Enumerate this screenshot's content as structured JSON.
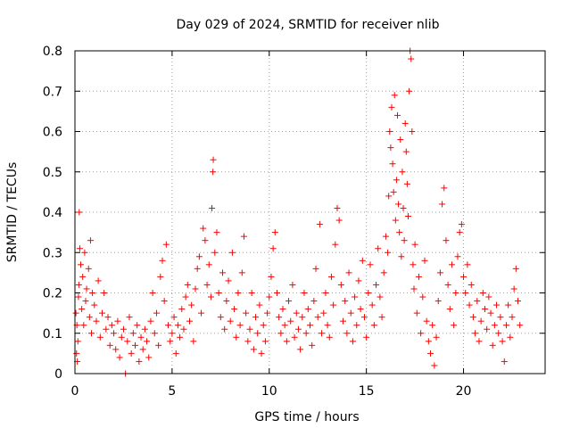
{
  "chart_data": {
    "type": "scatter",
    "title": "Day 029 of 2024, SRMTID for receiver nlib",
    "xlabel": "GPS time / hours",
    "ylabel": "SRMTID / TECUs",
    "xlim": [
      0,
      24.2
    ],
    "ylim": [
      0,
      0.8
    ],
    "xticks": [
      0,
      5,
      10,
      15,
      20
    ],
    "yticks": [
      0,
      0.1,
      0.2,
      0.3,
      0.4,
      0.5,
      0.6,
      0.7,
      0.8
    ],
    "xtick_labels": [
      "0",
      "5",
      "10",
      "15",
      "20"
    ],
    "ytick_labels": [
      "0",
      "0.1",
      "0.2",
      "0.3",
      "0.4",
      "0.5",
      "0.6",
      "0.7",
      "0.8"
    ],
    "grid": true,
    "marker": "+",
    "color": "#ff0000",
    "series": [
      {
        "name": "SRMTID",
        "points": [
          [
            0.05,
            0.15
          ],
          [
            0.08,
            0.05
          ],
          [
            0.1,
            0.12
          ],
          [
            0.12,
            0.03
          ],
          [
            0.15,
            0.08
          ],
          [
            0.18,
            0.19
          ],
          [
            0.2,
            0.22
          ],
          [
            0.22,
            0.4
          ],
          [
            0.25,
            0.31
          ],
          [
            0.3,
            0.27
          ],
          [
            0.35,
            0.16
          ],
          [
            0.4,
            0.24
          ],
          [
            0.45,
            0.12
          ],
          [
            0.5,
            0.3
          ],
          [
            0.55,
            0.18
          ],
          [
            0.6,
            0.21
          ],
          [
            0.7,
            0.26
          ],
          [
            0.75,
            0.14
          ],
          [
            0.8,
            0.33
          ],
          [
            0.85,
            0.1
          ],
          [
            0.9,
            0.2
          ],
          [
            1.0,
            0.17
          ],
          [
            1.1,
            0.13
          ],
          [
            1.2,
            0.23
          ],
          [
            1.3,
            0.09
          ],
          [
            1.4,
            0.15
          ],
          [
            1.5,
            0.2
          ],
          [
            1.6,
            0.11
          ],
          [
            1.7,
            0.14
          ],
          [
            1.8,
            0.07
          ],
          [
            1.9,
            0.12
          ],
          [
            2.0,
            0.1
          ],
          [
            2.1,
            0.06
          ],
          [
            2.2,
            0.13
          ],
          [
            2.3,
            0.04
          ],
          [
            2.4,
            0.09
          ],
          [
            2.5,
            0.11
          ],
          [
            2.6,
            0.0
          ],
          [
            2.7,
            0.08
          ],
          [
            2.8,
            0.14
          ],
          [
            2.9,
            0.05
          ],
          [
            3.0,
            0.1
          ],
          [
            3.1,
            0.07
          ],
          [
            3.2,
            0.12
          ],
          [
            3.3,
            0.03
          ],
          [
            3.4,
            0.09
          ],
          [
            3.5,
            0.06
          ],
          [
            3.6,
            0.11
          ],
          [
            3.7,
            0.08
          ],
          [
            3.8,
            0.04
          ],
          [
            3.9,
            0.13
          ],
          [
            4.0,
            0.2
          ],
          [
            4.1,
            0.1
          ],
          [
            4.2,
            0.15
          ],
          [
            4.3,
            0.07
          ],
          [
            4.4,
            0.24
          ],
          [
            4.5,
            0.28
          ],
          [
            4.6,
            0.18
          ],
          [
            4.7,
            0.32
          ],
          [
            4.8,
            0.12
          ],
          [
            4.9,
            0.08
          ],
          [
            5.0,
            0.1
          ],
          [
            5.1,
            0.14
          ],
          [
            5.2,
            0.05
          ],
          [
            5.3,
            0.12
          ],
          [
            5.4,
            0.09
          ],
          [
            5.5,
            0.16
          ],
          [
            5.6,
            0.11
          ],
          [
            5.7,
            0.19
          ],
          [
            5.8,
            0.22
          ],
          [
            5.9,
            0.13
          ],
          [
            6.0,
            0.17
          ],
          [
            6.1,
            0.08
          ],
          [
            6.2,
            0.21
          ],
          [
            6.3,
            0.26
          ],
          [
            6.4,
            0.29
          ],
          [
            6.5,
            0.15
          ],
          [
            6.6,
            0.36
          ],
          [
            6.7,
            0.33
          ],
          [
            6.8,
            0.22
          ],
          [
            6.9,
            0.27
          ],
          [
            7.0,
            0.19
          ],
          [
            7.05,
            0.41
          ],
          [
            7.1,
            0.5
          ],
          [
            7.12,
            0.53
          ],
          [
            7.2,
            0.3
          ],
          [
            7.3,
            0.35
          ],
          [
            7.4,
            0.2
          ],
          [
            7.5,
            0.14
          ],
          [
            7.6,
            0.25
          ],
          [
            7.7,
            0.11
          ],
          [
            7.8,
            0.18
          ],
          [
            7.9,
            0.23
          ],
          [
            8.0,
            0.13
          ],
          [
            8.1,
            0.3
          ],
          [
            8.2,
            0.16
          ],
          [
            8.3,
            0.09
          ],
          [
            8.4,
            0.2
          ],
          [
            8.5,
            0.12
          ],
          [
            8.6,
            0.25
          ],
          [
            8.7,
            0.34
          ],
          [
            8.8,
            0.15
          ],
          [
            8.9,
            0.08
          ],
          [
            9.0,
            0.11
          ],
          [
            9.1,
            0.2
          ],
          [
            9.2,
            0.06
          ],
          [
            9.3,
            0.14
          ],
          [
            9.4,
            0.1
          ],
          [
            9.5,
            0.17
          ],
          [
            9.6,
            0.05
          ],
          [
            9.7,
            0.12
          ],
          [
            9.8,
            0.08
          ],
          [
            9.9,
            0.15
          ],
          [
            10.0,
            0.19
          ],
          [
            10.1,
            0.24
          ],
          [
            10.2,
            0.31
          ],
          [
            10.3,
            0.35
          ],
          [
            10.4,
            0.2
          ],
          [
            10.5,
            0.14
          ],
          [
            10.6,
            0.1
          ],
          [
            10.7,
            0.16
          ],
          [
            10.8,
            0.12
          ],
          [
            10.9,
            0.08
          ],
          [
            11.0,
            0.18
          ],
          [
            11.1,
            0.13
          ],
          [
            11.2,
            0.22
          ],
          [
            11.3,
            0.09
          ],
          [
            11.4,
            0.15
          ],
          [
            11.5,
            0.11
          ],
          [
            11.6,
            0.06
          ],
          [
            11.7,
            0.14
          ],
          [
            11.8,
            0.2
          ],
          [
            11.9,
            0.1
          ],
          [
            12.0,
            0.16
          ],
          [
            12.1,
            0.12
          ],
          [
            12.2,
            0.07
          ],
          [
            12.3,
            0.18
          ],
          [
            12.4,
            0.26
          ],
          [
            12.5,
            0.14
          ],
          [
            12.6,
            0.37
          ],
          [
            12.7,
            0.1
          ],
          [
            12.8,
            0.15
          ],
          [
            12.9,
            0.2
          ],
          [
            13.0,
            0.12
          ],
          [
            13.1,
            0.09
          ],
          [
            13.2,
            0.24
          ],
          [
            13.3,
            0.17
          ],
          [
            13.4,
            0.32
          ],
          [
            13.5,
            0.41
          ],
          [
            13.6,
            0.38
          ],
          [
            13.7,
            0.22
          ],
          [
            13.8,
            0.13
          ],
          [
            13.9,
            0.18
          ],
          [
            14.0,
            0.1
          ],
          [
            14.1,
            0.25
          ],
          [
            14.2,
            0.15
          ],
          [
            14.3,
            0.08
          ],
          [
            14.4,
            0.19
          ],
          [
            14.5,
            0.12
          ],
          [
            14.6,
            0.23
          ],
          [
            14.7,
            0.16
          ],
          [
            14.8,
            0.28
          ],
          [
            14.9,
            0.14
          ],
          [
            15.0,
            0.09
          ],
          [
            15.1,
            0.2
          ],
          [
            15.2,
            0.27
          ],
          [
            15.3,
            0.17
          ],
          [
            15.4,
            0.12
          ],
          [
            15.5,
            0.22
          ],
          [
            15.6,
            0.31
          ],
          [
            15.7,
            0.19
          ],
          [
            15.8,
            0.14
          ],
          [
            15.9,
            0.25
          ],
          [
            16.0,
            0.34
          ],
          [
            16.1,
            0.3
          ],
          [
            16.15,
            0.44
          ],
          [
            16.2,
            0.6
          ],
          [
            16.25,
            0.56
          ],
          [
            16.3,
            0.66
          ],
          [
            16.35,
            0.52
          ],
          [
            16.4,
            0.45
          ],
          [
            16.45,
            0.69
          ],
          [
            16.5,
            0.38
          ],
          [
            16.55,
            0.48
          ],
          [
            16.6,
            0.64
          ],
          [
            16.65,
            0.42
          ],
          [
            16.7,
            0.35
          ],
          [
            16.75,
            0.58
          ],
          [
            16.8,
            0.29
          ],
          [
            16.85,
            0.5
          ],
          [
            16.9,
            0.41
          ],
          [
            16.95,
            0.33
          ],
          [
            17.0,
            0.62
          ],
          [
            17.05,
            0.55
          ],
          [
            17.1,
            0.47
          ],
          [
            17.15,
            0.39
          ],
          [
            17.2,
            0.7
          ],
          [
            17.25,
            0.8
          ],
          [
            17.3,
            0.78
          ],
          [
            17.35,
            0.6
          ],
          [
            17.4,
            0.27
          ],
          [
            17.45,
            0.21
          ],
          [
            17.5,
            0.32
          ],
          [
            17.6,
            0.15
          ],
          [
            17.7,
            0.24
          ],
          [
            17.8,
            0.1
          ],
          [
            17.9,
            0.19
          ],
          [
            18.0,
            0.28
          ],
          [
            18.1,
            0.13
          ],
          [
            18.2,
            0.08
          ],
          [
            18.3,
            0.05
          ],
          [
            18.4,
            0.12
          ],
          [
            18.5,
            0.02
          ],
          [
            18.6,
            0.09
          ],
          [
            18.7,
            0.18
          ],
          [
            18.8,
            0.25
          ],
          [
            18.9,
            0.42
          ],
          [
            19.0,
            0.46
          ],
          [
            19.1,
            0.33
          ],
          [
            19.2,
            0.22
          ],
          [
            19.3,
            0.16
          ],
          [
            19.4,
            0.27
          ],
          [
            19.5,
            0.12
          ],
          [
            19.6,
            0.2
          ],
          [
            19.7,
            0.29
          ],
          [
            19.8,
            0.35
          ],
          [
            19.9,
            0.37
          ],
          [
            20.0,
            0.24
          ],
          [
            20.1,
            0.2
          ],
          [
            20.2,
            0.27
          ],
          [
            20.3,
            0.17
          ],
          [
            20.4,
            0.22
          ],
          [
            20.5,
            0.14
          ],
          [
            20.6,
            0.1
          ],
          [
            20.7,
            0.18
          ],
          [
            20.8,
            0.08
          ],
          [
            20.9,
            0.13
          ],
          [
            21.0,
            0.2
          ],
          [
            21.1,
            0.16
          ],
          [
            21.2,
            0.11
          ],
          [
            21.3,
            0.19
          ],
          [
            21.4,
            0.15
          ],
          [
            21.5,
            0.07
          ],
          [
            21.6,
            0.12
          ],
          [
            21.7,
            0.17
          ],
          [
            21.8,
            0.1
          ],
          [
            21.9,
            0.14
          ],
          [
            22.0,
            0.08
          ],
          [
            22.1,
            0.03
          ],
          [
            22.2,
            0.12
          ],
          [
            22.3,
            0.17
          ],
          [
            22.4,
            0.09
          ],
          [
            22.5,
            0.14
          ],
          [
            22.6,
            0.21
          ],
          [
            22.7,
            0.26
          ],
          [
            22.8,
            0.18
          ],
          [
            22.9,
            0.12
          ]
        ]
      }
    ]
  }
}
